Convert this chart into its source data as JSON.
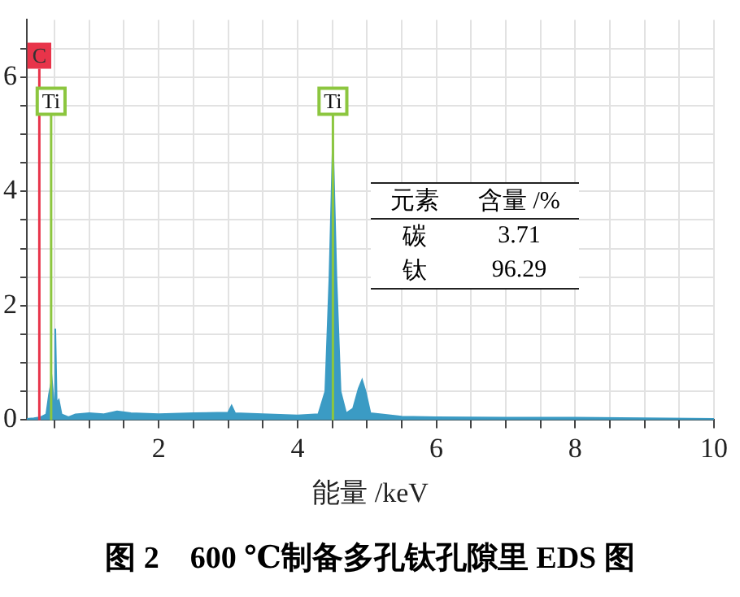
{
  "chart_data": {
    "type": "area",
    "title": "图 2　600 ℃制备多孔钛孔隙里 EDS 图",
    "xlabel": "能量 /keV",
    "series": [
      {
        "color": "#3b9bc4",
        "x": [
          0.1,
          0.2,
          0.3,
          0.38,
          0.42,
          0.46,
          0.49,
          0.51,
          0.53,
          0.56,
          0.6,
          0.7,
          0.8,
          1.0,
          1.2,
          1.4,
          1.6,
          2.0,
          2.5,
          3.0,
          3.05,
          3.1,
          3.5,
          4.0,
          4.3,
          4.4,
          4.46,
          4.51,
          4.56,
          4.62,
          4.7,
          4.8,
          4.88,
          4.93,
          4.98,
          5.05,
          5.5,
          6,
          7,
          8,
          9,
          10
        ],
        "values": [
          0.02,
          0.03,
          0.05,
          0.1,
          0.45,
          0.7,
          0.3,
          1.6,
          0.3,
          0.35,
          0.1,
          0.05,
          0.1,
          0.12,
          0.1,
          0.15,
          0.12,
          0.1,
          0.12,
          0.13,
          0.25,
          0.12,
          0.1,
          0.08,
          0.1,
          0.5,
          2.5,
          4.9,
          2.5,
          0.5,
          0.12,
          0.2,
          0.55,
          0.7,
          0.5,
          0.12,
          0.06,
          0.05,
          0.04,
          0.04,
          0.03,
          0.02
        ]
      }
    ],
    "xlim": [
      0.1,
      10
    ],
    "xticks": [
      {
        "value": 0.5,
        "label": null
      },
      {
        "value": 1,
        "label": null
      },
      {
        "value": 1.5,
        "label": null
      },
      2,
      {
        "value": 2.5,
        "label": null
      },
      {
        "value": 3,
        "label": null
      },
      {
        "value": 3.5,
        "label": null
      },
      4,
      {
        "value": 4.5,
        "label": null
      },
      {
        "value": 5,
        "label": null
      },
      {
        "value": 5.5,
        "label": null
      },
      6,
      {
        "value": 6.5,
        "label": null
      },
      {
        "value": 7,
        "label": null
      },
      {
        "value": 7.5,
        "label": null
      },
      8,
      {
        "value": 8.5,
        "label": null
      },
      {
        "value": 9,
        "label": null
      },
      {
        "value": 9.5,
        "label": null
      },
      10
    ],
    "ylim": [
      0,
      7
    ],
    "yticks": [
      0,
      {
        "value": 0.5,
        "label": null
      },
      {
        "value": 1,
        "label": null
      },
      {
        "value": 1.5,
        "label": null
      },
      2,
      {
        "value": 2.5,
        "label": null
      },
      {
        "value": 3,
        "label": null
      },
      {
        "value": 3.5,
        "label": null
      },
      4,
      {
        "value": 4.5,
        "label": null
      },
      {
        "value": 5,
        "label": null
      },
      {
        "value": 5.5,
        "label": null
      },
      6,
      {
        "value": 6.5,
        "label": null
      }
    ],
    "grid": true,
    "ref_lines": [
      {
        "axis": "x",
        "value": 0.28,
        "label": "C",
        "color": "#e8344a"
      },
      {
        "axis": "x",
        "value": 0.45,
        "label": "Ti",
        "color": "#8cc63f"
      },
      {
        "axis": "x",
        "value": 4.51,
        "label": "Ti",
        "color": "#8cc63f"
      }
    ],
    "annotations": [
      "元素",
      "含量 /%",
      "碳",
      "3.71",
      "钛",
      "96.29"
    ]
  }
}
